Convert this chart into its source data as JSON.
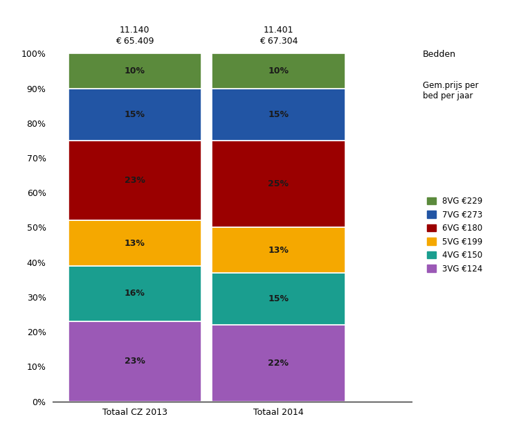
{
  "categories": [
    "Totaal CZ 2013",
    "Totaal 2014"
  ],
  "top_labels": [
    "11.140",
    "11.401"
  ],
  "price_labels": [
    "€ 65.409",
    "€ 67.304"
  ],
  "segments": [
    {
      "label": "3VG €124",
      "color": "#9B59B6",
      "values": [
        23,
        22
      ]
    },
    {
      "label": "4VG €150",
      "color": "#1A9E8F",
      "values": [
        16,
        15
      ]
    },
    {
      "label": "5VG €199",
      "color": "#F5A800",
      "values": [
        13,
        13
      ]
    },
    {
      "label": "6VG €180",
      "color": "#9B0000",
      "values": [
        23,
        25
      ]
    },
    {
      "label": "7VG €273",
      "color": "#2255A4",
      "values": [
        15,
        15
      ]
    },
    {
      "label": "8VG €229",
      "color": "#5B8A3C",
      "values": [
        10,
        10
      ]
    }
  ],
  "legend_header1": "Bedden",
  "legend_header2": "Gem.prijs per\nbed per jaar",
  "ylabel_ticks": [
    "0%",
    "10%",
    "20%",
    "30%",
    "40%",
    "50%",
    "60%",
    "70%",
    "80%",
    "90%",
    "100%"
  ],
  "background_color": "#FFFFFF",
  "bar_width": 0.65,
  "x_positions": [
    0.3,
    1.0
  ],
  "xlim": [
    -0.1,
    1.65
  ],
  "label_color": "#1A1A1A",
  "label_fontsize": 9
}
